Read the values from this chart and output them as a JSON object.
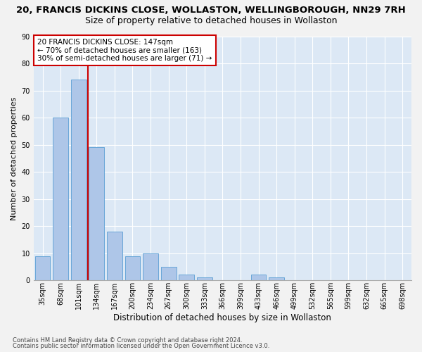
{
  "title": "20, FRANCIS DICKINS CLOSE, WOLLASTON, WELLINGBOROUGH, NN29 7RH",
  "subtitle": "Size of property relative to detached houses in Wollaston",
  "xlabel": "Distribution of detached houses by size in Wollaston",
  "ylabel": "Number of detached properties",
  "footnote1": "Contains HM Land Registry data © Crown copyright and database right 2024.",
  "footnote2": "Contains public sector information licensed under the Open Government Licence v3.0.",
  "annotation_line1": "20 FRANCIS DICKINS CLOSE: 147sqm",
  "annotation_line2": "← 70% of detached houses are smaller (163)",
  "annotation_line3": "30% of semi-detached houses are larger (71) →",
  "bar_labels": [
    "35sqm",
    "68sqm",
    "101sqm",
    "134sqm",
    "167sqm",
    "200sqm",
    "234sqm",
    "267sqm",
    "300sqm",
    "333sqm",
    "366sqm",
    "399sqm",
    "433sqm",
    "466sqm",
    "499sqm",
    "532sqm",
    "565sqm",
    "599sqm",
    "632sqm",
    "665sqm",
    "698sqm"
  ],
  "bar_values": [
    9,
    60,
    74,
    49,
    18,
    9,
    10,
    5,
    2,
    1,
    0,
    0,
    2,
    1,
    0,
    0,
    0,
    0,
    0,
    0,
    0
  ],
  "bar_color": "#aec6e8",
  "bar_edge_color": "#5a9fd4",
  "vline_x_index": 3,
  "vline_color": "#cc0000",
  "ylim": [
    0,
    90
  ],
  "yticks": [
    0,
    10,
    20,
    30,
    40,
    50,
    60,
    70,
    80,
    90
  ],
  "bg_color": "#dce8f5",
  "grid_color": "#ffffff",
  "annotation_box_color": "#cc0000",
  "fig_bg_color": "#f2f2f2",
  "title_fontsize": 9.5,
  "subtitle_fontsize": 9,
  "ylabel_fontsize": 8,
  "xlabel_fontsize": 8.5,
  "tick_fontsize": 7,
  "annotation_fontsize": 7.5,
  "footnote_fontsize": 6
}
